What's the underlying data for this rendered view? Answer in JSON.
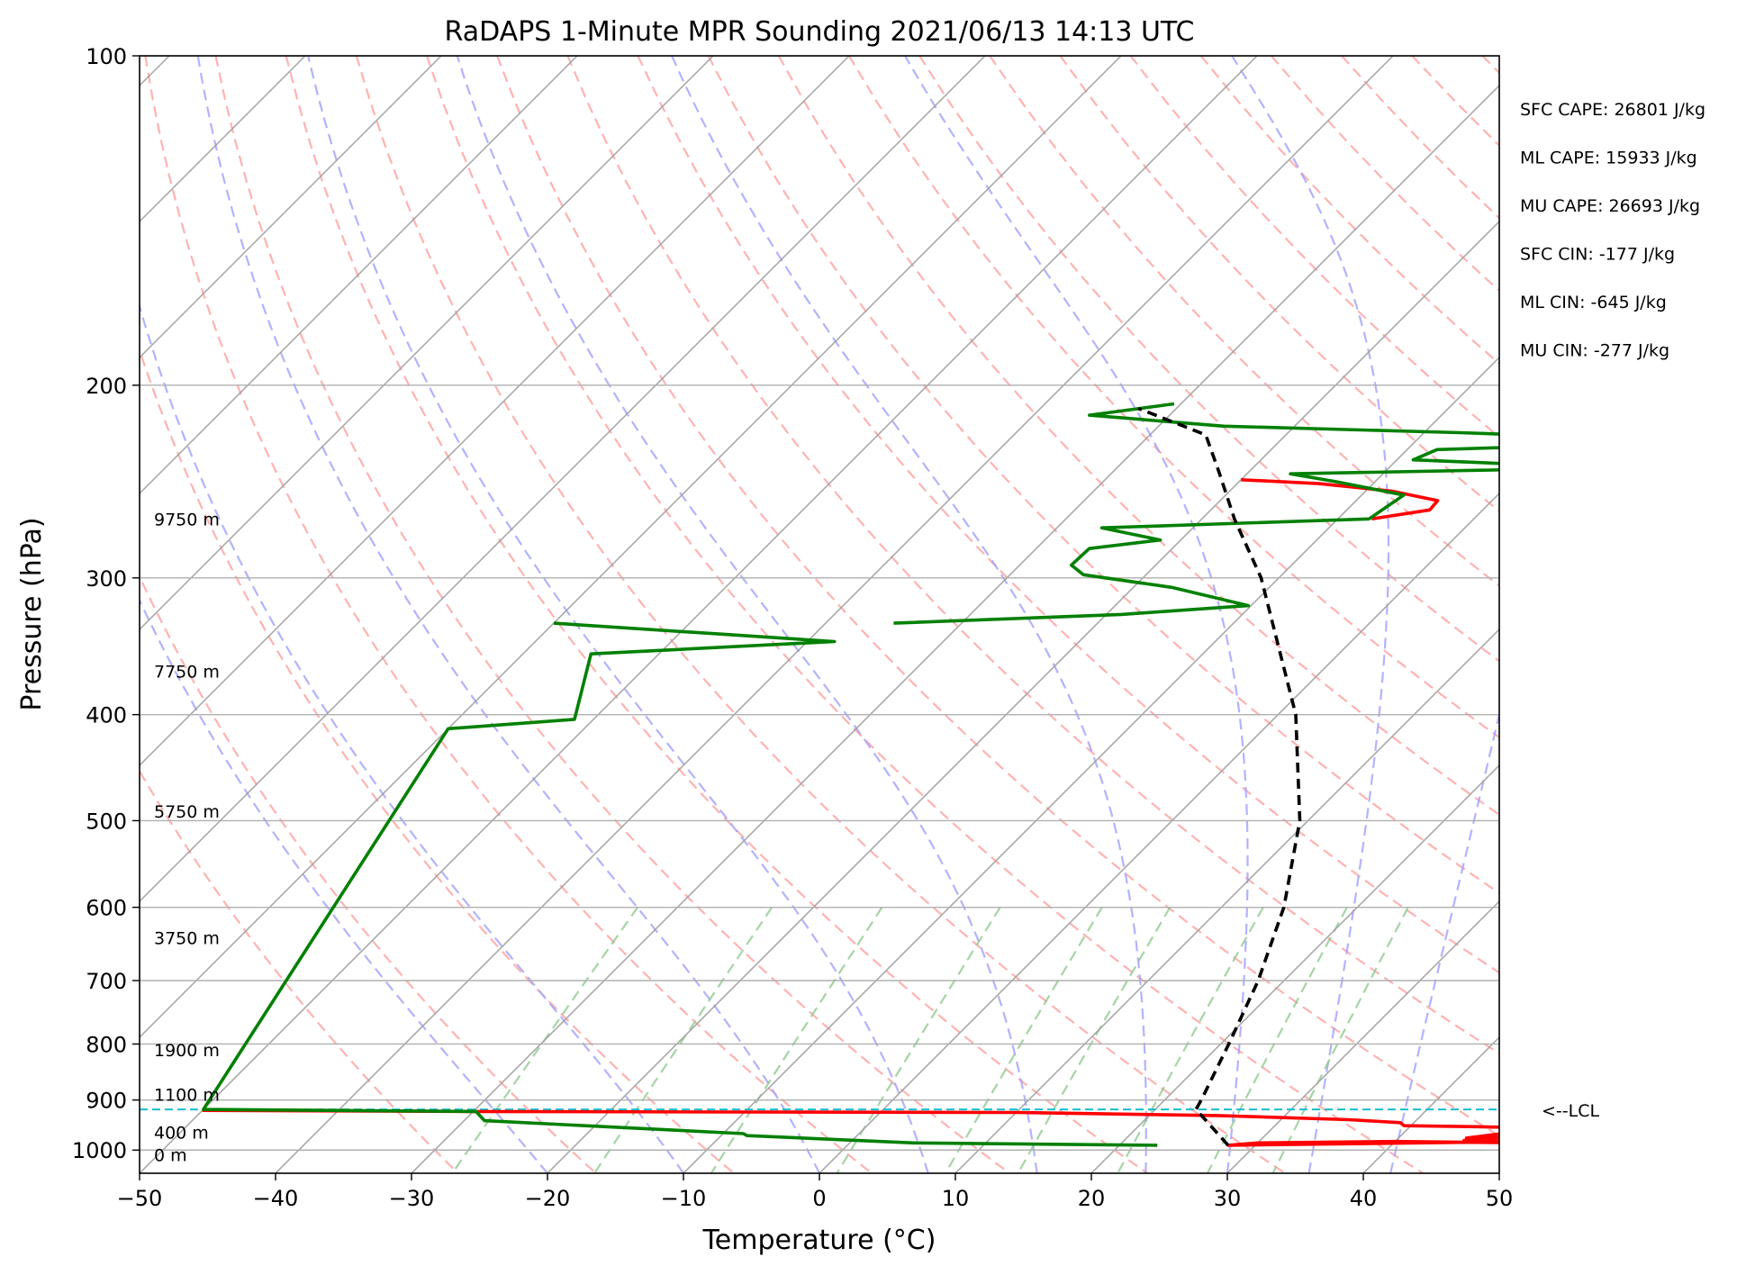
{
  "chart_data": {
    "type": "line",
    "title": "RaDAPS 1-Minute MPR Sounding 2021/06/13 14:13 UTC",
    "xlabel": "Temperature (°C)",
    "ylabel": "Pressure (hPa)",
    "xlim": [
      -50,
      50
    ],
    "ylim": [
      1050,
      100
    ],
    "y_scale": "log",
    "xticks": [
      -50,
      -40,
      -30,
      -20,
      -10,
      0,
      10,
      20,
      30,
      40,
      50
    ],
    "xtick_labels": [
      "−50",
      "−40",
      "−30",
      "−20",
      "−10",
      "0",
      "10",
      "20",
      "30",
      "40",
      "50"
    ],
    "yticks": [
      100,
      200,
      300,
      400,
      500,
      600,
      700,
      800,
      900,
      1000
    ],
    "ytick_labels": [
      "100",
      "200",
      "300",
      "400",
      "500",
      "600",
      "700",
      "800",
      "900",
      "1000"
    ],
    "grid": true,
    "skew_t": true,
    "series": [
      {
        "role": "temperature",
        "color": "#ff0000",
        "points": [
          [
            -50,
            920
          ],
          [
            -30,
            922
          ],
          [
            -10,
            923
          ],
          [
            10,
            924
          ],
          [
            25,
            930
          ],
          [
            35,
            938
          ],
          [
            39,
            944
          ],
          [
            39.5,
            950
          ],
          [
            45,
            952
          ],
          [
            50,
            955
          ],
          [
            45,
            975
          ],
          [
            50,
            972
          ],
          [
            45,
            980
          ],
          [
            50,
            982
          ],
          [
            28,
            990
          ],
          [
            30,
            985
          ],
          [
            40,
            982
          ],
          [
            50,
            985
          ]
        ],
        "upper_points": [
          [
            -7.5,
            265
          ],
          [
            -3.9,
            260
          ],
          [
            -4,
            255
          ],
          [
            -8,
            250
          ],
          [
            -14,
            246
          ],
          [
            -20,
            244
          ]
        ]
      },
      {
        "role": "dewpoint",
        "color": "#008000",
        "points": [
          [
            -35,
            330
          ],
          [
            -18.9,
            324
          ],
          [
            -10.2,
            318
          ],
          [
            -17.2,
            306
          ],
          [
            -24.6,
            298
          ],
          [
            -26.2,
            292
          ],
          [
            -26.1,
            282
          ],
          [
            -21.5,
            277
          ],
          [
            -26.7,
            270
          ],
          [
            -7.7,
            265
          ],
          [
            -6.9,
            252
          ],
          [
            -12.9,
            245
          ],
          [
            -16.8,
            241
          ],
          [
            6.1,
            238
          ],
          [
            -8.8,
            234
          ],
          [
            -7.8,
            229
          ],
          [
            11.5,
            225
          ],
          [
            -7.4,
            221
          ],
          [
            -25.2,
            218
          ],
          [
            -35.9,
            213
          ],
          [
            -30.5,
            208
          ]
        ],
        "lower_points": [
          [
            -60,
            330
          ],
          [
            -38,
            343
          ],
          [
            -55,
            352
          ],
          [
            -51.4,
            404
          ],
          [
            -60,
            412
          ],
          [
            -50,
            918
          ],
          [
            -29.8,
            922
          ],
          [
            -28.5,
            940
          ],
          [
            -8.5,
            966
          ],
          [
            -8.1,
            970
          ],
          [
            4.7,
            985
          ],
          [
            22.8,
            990
          ]
        ]
      },
      {
        "role": "parcel-profile",
        "color": "#000000",
        "dashed": true,
        "points": [
          [
            28,
            990
          ],
          [
            23,
            918
          ],
          [
            22.7,
            900
          ],
          [
            20.6,
            800
          ],
          [
            18.1,
            700
          ],
          [
            14.6,
            600
          ],
          [
            9.4,
            500
          ],
          [
            1.3,
            400
          ],
          [
            -11.3,
            300
          ],
          [
            -17.6,
            265
          ],
          [
            -22.2,
            240
          ],
          [
            -25.9,
            222
          ],
          [
            -32.8,
            210
          ]
        ]
      }
    ],
    "lcl_pressure": 918,
    "lcl_label": "<--LCL",
    "height_labels": [
      {
        "text": "9750 m",
        "p": 265
      },
      {
        "text": "7750 m",
        "p": 365
      },
      {
        "text": "5750 m",
        "p": 490
      },
      {
        "text": "3750 m",
        "p": 640
      },
      {
        "text": "1900 m",
        "p": 810
      },
      {
        "text": "1100 m",
        "p": 890
      },
      {
        "text": "400 m",
        "p": 963
      },
      {
        "text": "0 m",
        "p": 1010
      }
    ],
    "annotations": [
      "SFC CAPE: 26801 J/kg",
      "ML CAPE: 15933 J/kg",
      "MU CAPE: 26693 J/kg",
      "SFC CIN: -177 J/kg",
      "ML CIN: -645 J/kg",
      "MU CIN: -277 J/kg"
    ],
    "colors": {
      "temperature": "#ff0000",
      "dewpoint": "#008000",
      "parcel": "#000000",
      "lcl": "#17becf",
      "dry_adiabat": "#ff9f9f",
      "moist_adiabat": "#9f9fff",
      "mixing_ratio": "#8fc98f",
      "isotherm": "#a0a0a0",
      "grid": "#b0b0b0"
    }
  }
}
